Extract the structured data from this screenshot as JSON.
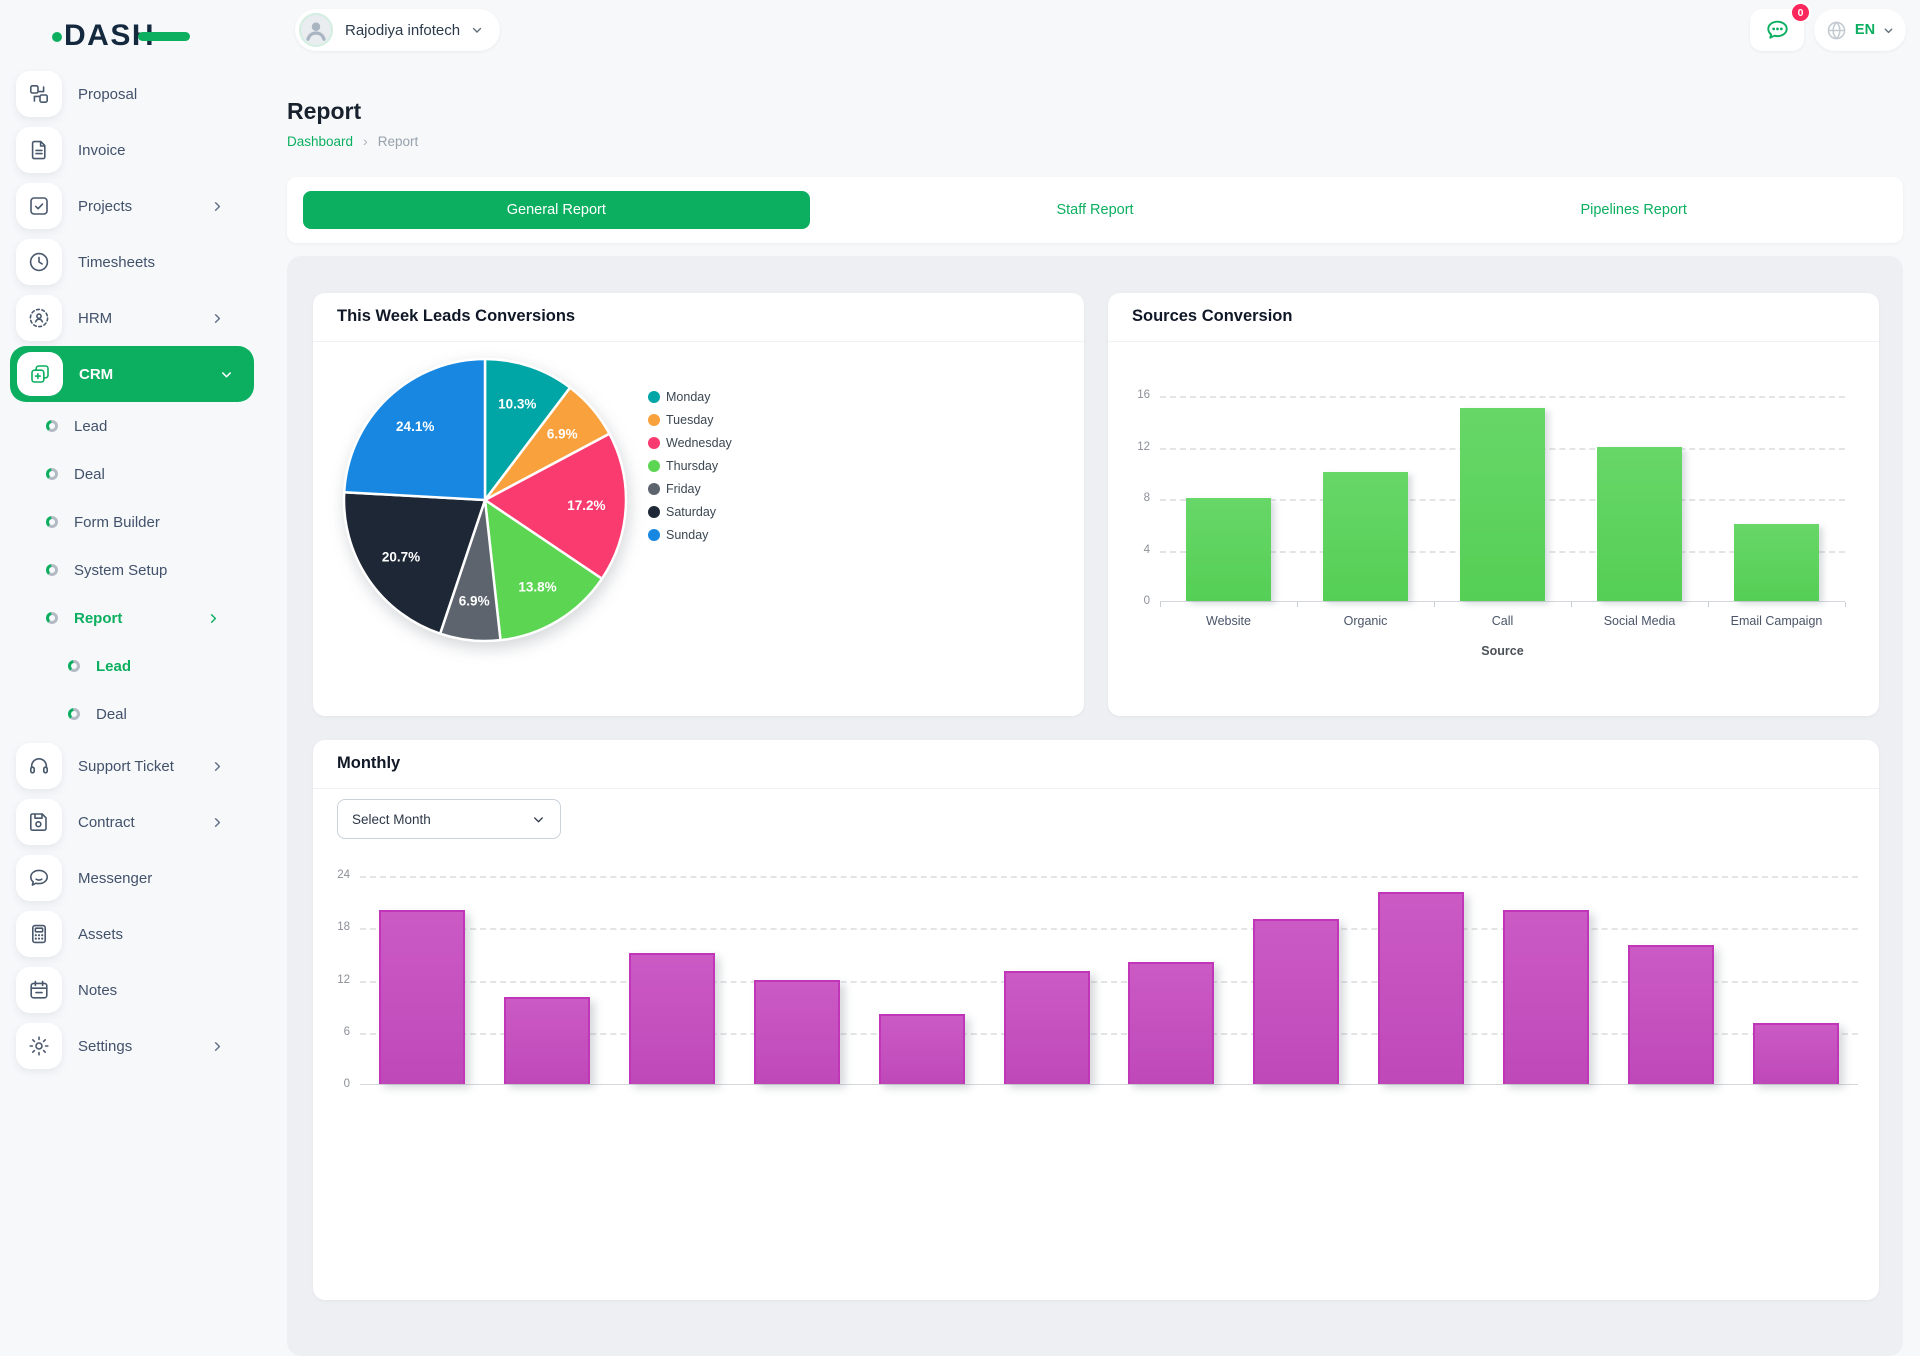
{
  "topbar": {
    "logo_text": "DASH",
    "company_name": "Rajodiya infotech",
    "chat_badge_count": "0",
    "language": "EN"
  },
  "colors": {
    "primary_green": "#0caf60",
    "badge_red": "#fc275c",
    "sources_bar": "#5cd05c",
    "monthly_bar": "#c553bf"
  },
  "sidebar": {
    "items": [
      {
        "label": "Proposal",
        "icon": "proposal-icon",
        "type": "tile"
      },
      {
        "label": "Invoice",
        "icon": "invoice-icon",
        "type": "tile"
      },
      {
        "label": "Projects",
        "icon": "projects-icon",
        "type": "tile",
        "chevron": "right"
      },
      {
        "label": "Timesheets",
        "icon": "timesheets-icon",
        "type": "tile"
      },
      {
        "label": "HRM",
        "icon": "hrm-icon",
        "type": "tile",
        "chevron": "right"
      },
      {
        "label": "CRM",
        "icon": "crm-icon",
        "type": "tile",
        "chevron": "down",
        "active": true
      },
      {
        "label": "Lead",
        "type": "sub"
      },
      {
        "label": "Deal",
        "type": "sub"
      },
      {
        "label": "Form Builder",
        "type": "sub"
      },
      {
        "label": "System Setup",
        "type": "sub"
      },
      {
        "label": "Report",
        "type": "sub",
        "chevron": "right",
        "active": true
      },
      {
        "label": "Lead",
        "type": "subsub",
        "active": true
      },
      {
        "label": "Deal",
        "type": "subsub"
      },
      {
        "label": "Support Ticket",
        "icon": "support-ticket-icon",
        "type": "tile",
        "chevron": "right"
      },
      {
        "label": "Contract",
        "icon": "contract-icon",
        "type": "tile",
        "chevron": "right"
      },
      {
        "label": "Messenger",
        "icon": "messenger-icon",
        "type": "tile"
      },
      {
        "label": "Assets",
        "icon": "assets-icon",
        "type": "tile"
      },
      {
        "label": "Notes",
        "icon": "notes-icon",
        "type": "tile"
      },
      {
        "label": "Settings",
        "icon": "settings-icon",
        "type": "tile",
        "chevron": "right"
      }
    ]
  },
  "page": {
    "title": "Report",
    "breadcrumb_items": [
      {
        "label": "Dashboard",
        "link": true
      },
      {
        "label": "Report",
        "link": false
      }
    ]
  },
  "tabs": {
    "items": [
      {
        "label": "General Report",
        "active": true
      },
      {
        "label": "Staff Report",
        "active": false
      },
      {
        "label": "Pipelines Report",
        "active": false
      }
    ]
  },
  "monthly_filter": {
    "select_label": "Select Month"
  },
  "chart_data": [
    {
      "type": "pie",
      "title": "This Week Leads Conversions",
      "labels": [
        "Monday",
        "Tuesday",
        "Wednesday",
        "Thursday",
        "Friday",
        "Saturday",
        "Sunday"
      ],
      "values": [
        10.3,
        6.9,
        17.2,
        13.8,
        6.9,
        20.7,
        24.1
      ],
      "value_format": "percent",
      "colors": [
        "#00a5a5",
        "#f9a13c",
        "#fa3b6f",
        "#5cd553",
        "#5d646e",
        "#1e2735",
        "#1787e1"
      ],
      "legend_position": "right"
    },
    {
      "type": "bar",
      "title": "Sources Conversion",
      "categories": [
        "Website",
        "Organic",
        "Call",
        "Social Media",
        "Email Campaign"
      ],
      "values": [
        8,
        10,
        15,
        12,
        6
      ],
      "xlabel": "Source",
      "ylabel": "",
      "ylim": [
        0,
        16
      ],
      "yticks": [
        0,
        4,
        8,
        12,
        16
      ],
      "bar_color": "#5cd05c",
      "grid": "dashed-horizontal"
    },
    {
      "type": "bar",
      "title": "Monthly",
      "categories": [],
      "values": [
        20,
        10,
        15,
        12,
        8,
        13,
        14,
        19,
        22,
        20,
        16,
        7
      ],
      "xlabel": "",
      "ylabel": "",
      "ylim": [
        0,
        24
      ],
      "yticks": [
        0,
        6,
        12,
        18,
        24
      ],
      "bar_color": "#c553bf",
      "grid": "dashed-horizontal"
    }
  ]
}
